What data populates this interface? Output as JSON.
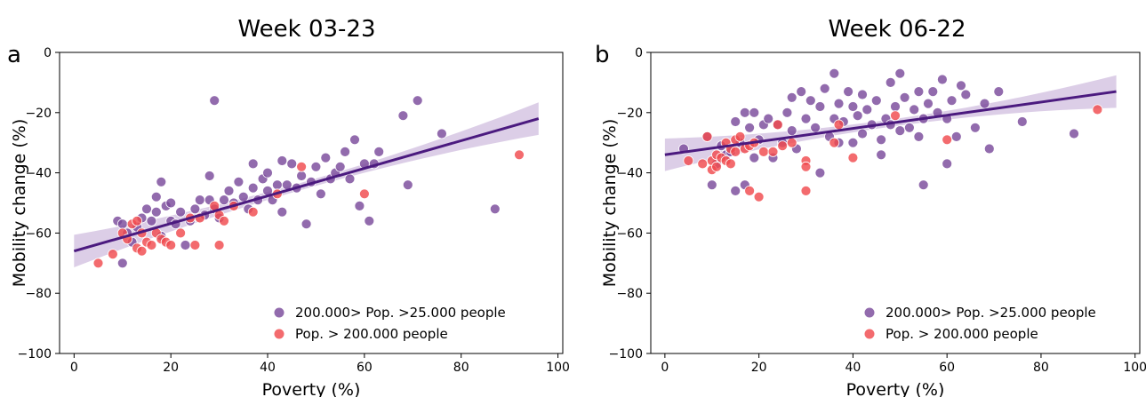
{
  "chart_data": [
    {
      "type": "scatter",
      "panel_letter": "a",
      "title": "Week 03-23",
      "xlabel": "Poverty (%)",
      "ylabel": "Mobility change (%)",
      "xlim": [
        -3,
        101
      ],
      "ylim": [
        -100,
        0
      ],
      "xticks": [
        0,
        20,
        40,
        60,
        80,
        100
      ],
      "yticks": [
        0,
        -20,
        -40,
        -60,
        -80,
        -100
      ],
      "grid": false,
      "legend_position": "lower-right",
      "series": [
        {
          "name": "200.000> Pop. >25.000 people",
          "color": "#7a4a9b",
          "points": [
            [
              9,
              -56
            ],
            [
              10,
              -57
            ],
            [
              10,
              -70
            ],
            [
              11,
              -60
            ],
            [
              12,
              -63
            ],
            [
              13,
              -58
            ],
            [
              14,
              -55
            ],
            [
              15,
              -52
            ],
            [
              16,
              -56
            ],
            [
              17,
              -48
            ],
            [
              17,
              -53
            ],
            [
              18,
              -43
            ],
            [
              18,
              -61
            ],
            [
              19,
              -51
            ],
            [
              20,
              -56
            ],
            [
              20,
              -50
            ],
            [
              21,
              -57
            ],
            [
              22,
              -53
            ],
            [
              23,
              -64
            ],
            [
              24,
              -56
            ],
            [
              25,
              -52
            ],
            [
              26,
              -49
            ],
            [
              27,
              -54
            ],
            [
              28,
              -41
            ],
            [
              28,
              -49
            ],
            [
              29,
              -16
            ],
            [
              29,
              -52
            ],
            [
              30,
              -55
            ],
            [
              31,
              -49
            ],
            [
              32,
              -46
            ],
            [
              33,
              -50
            ],
            [
              34,
              -43
            ],
            [
              35,
              -48
            ],
            [
              36,
              -52
            ],
            [
              37,
              -37
            ],
            [
              37,
              -45
            ],
            [
              38,
              -49
            ],
            [
              39,
              -42
            ],
            [
              40,
              -46
            ],
            [
              40,
              -40
            ],
            [
              41,
              -49
            ],
            [
              42,
              -44
            ],
            [
              43,
              -36
            ],
            [
              43,
              -53
            ],
            [
              44,
              -44
            ],
            [
              45,
              -37
            ],
            [
              46,
              -45
            ],
            [
              47,
              -41
            ],
            [
              48,
              -57
            ],
            [
              49,
              -43
            ],
            [
              50,
              -38
            ],
            [
              51,
              -47
            ],
            [
              52,
              -35
            ],
            [
              53,
              -42
            ],
            [
              54,
              -40
            ],
            [
              55,
              -38
            ],
            [
              56,
              -33
            ],
            [
              57,
              -42
            ],
            [
              58,
              -29
            ],
            [
              59,
              -51
            ],
            [
              60,
              -37
            ],
            [
              61,
              -56
            ],
            [
              62,
              -37
            ],
            [
              63,
              -33
            ],
            [
              68,
              -21
            ],
            [
              69,
              -44
            ],
            [
              71,
              -16
            ],
            [
              76,
              -27
            ],
            [
              87,
              -52
            ]
          ]
        },
        {
          "name": "Pop. > 200.000 people",
          "color": "#f04a4e",
          "points": [
            [
              5,
              -70
            ],
            [
              8,
              -67
            ],
            [
              10,
              -60
            ],
            [
              11,
              -62
            ],
            [
              12,
              -57
            ],
            [
              13,
              -56
            ],
            [
              13,
              -65
            ],
            [
              14,
              -60
            ],
            [
              14,
              -66
            ],
            [
              15,
              -63
            ],
            [
              16,
              -64
            ],
            [
              17,
              -60
            ],
            [
              18,
              -62
            ],
            [
              19,
              -63
            ],
            [
              20,
              -64
            ],
            [
              22,
              -60
            ],
            [
              24,
              -55
            ],
            [
              25,
              -64
            ],
            [
              26,
              -55
            ],
            [
              29,
              -51
            ],
            [
              30,
              -54
            ],
            [
              30,
              -64
            ],
            [
              31,
              -56
            ],
            [
              33,
              -51
            ],
            [
              37,
              -53
            ],
            [
              42,
              -47
            ],
            [
              47,
              -38
            ],
            [
              60,
              -47
            ],
            [
              92,
              -34
            ]
          ]
        }
      ],
      "regression": {
        "color": "#4b1a7f",
        "x": [
          0,
          96
        ],
        "y": [
          -66,
          -22
        ],
        "ci_color": "#c9b3da"
      }
    },
    {
      "type": "scatter",
      "panel_letter": "b",
      "title": "Week 06-22",
      "xlabel": "Poverty (%)",
      "ylabel": "Mobility change (%)",
      "xlim": [
        -3,
        101
      ],
      "ylim": [
        -100,
        0
      ],
      "xticks": [
        0,
        20,
        40,
        60,
        80,
        100
      ],
      "yticks": [
        0,
        -20,
        -40,
        -60,
        -80,
        -100
      ],
      "grid": false,
      "legend_position": "lower-right",
      "series": [
        {
          "name": "200.000> Pop. >25.000 people",
          "color": "#7a4a9b",
          "points": [
            [
              4,
              -32
            ],
            [
              9,
              -28
            ],
            [
              10,
              -44
            ],
            [
              11,
              -37
            ],
            [
              12,
              -31
            ],
            [
              13,
              -34
            ],
            [
              14,
              -33
            ],
            [
              15,
              -46
            ],
            [
              15,
              -23
            ],
            [
              16,
              -30
            ],
            [
              17,
              -20
            ],
            [
              17,
              -44
            ],
            [
              18,
              -25
            ],
            [
              19,
              -35
            ],
            [
              19,
              -20
            ],
            [
              20,
              -29
            ],
            [
              21,
              -24
            ],
            [
              22,
              -22
            ],
            [
              23,
              -35
            ],
            [
              24,
              -24
            ],
            [
              25,
              -30
            ],
            [
              26,
              -20
            ],
            [
              27,
              -15
            ],
            [
              27,
              -26
            ],
            [
              28,
              -32
            ],
            [
              29,
              -13
            ],
            [
              30,
              -22
            ],
            [
              31,
              -16
            ],
            [
              32,
              -25
            ],
            [
              33,
              -18
            ],
            [
              33,
              -40
            ],
            [
              34,
              -12
            ],
            [
              35,
              -28
            ],
            [
              36,
              -7
            ],
            [
              36,
              -22
            ],
            [
              37,
              -17
            ],
            [
              37,
              -30
            ],
            [
              38,
              -23
            ],
            [
              39,
              -13
            ],
            [
              40,
              -18
            ],
            [
              40,
              -30
            ],
            [
              41,
              -21
            ],
            [
              42,
              -14
            ],
            [
              42,
              -27
            ],
            [
              43,
              -19
            ],
            [
              44,
              -24
            ],
            [
              45,
              -16
            ],
            [
              46,
              -29
            ],
            [
              46,
              -34
            ],
            [
              47,
              -22
            ],
            [
              48,
              -10
            ],
            [
              48,
              -24
            ],
            [
              49,
              -18
            ],
            [
              50,
              -7
            ],
            [
              50,
              -26
            ],
            [
              51,
              -15
            ],
            [
              52,
              -25
            ],
            [
              53,
              -19
            ],
            [
              54,
              -13
            ],
            [
              54,
              -28
            ],
            [
              55,
              -44
            ],
            [
              55,
              -22
            ],
            [
              56,
              -17
            ],
            [
              57,
              -13
            ],
            [
              58,
              -20
            ],
            [
              59,
              -9
            ],
            [
              60,
              -22
            ],
            [
              60,
              -37
            ],
            [
              61,
              -16
            ],
            [
              62,
              -28
            ],
            [
              63,
              -11
            ],
            [
              64,
              -14
            ],
            [
              66,
              -25
            ],
            [
              68,
              -17
            ],
            [
              69,
              -32
            ],
            [
              71,
              -13
            ],
            [
              76,
              -23
            ],
            [
              87,
              -27
            ]
          ]
        },
        {
          "name": "Pop. > 200.000 people",
          "color": "#f04a4e",
          "points": [
            [
              5,
              -36
            ],
            [
              8,
              -37
            ],
            [
              9,
              -28
            ],
            [
              10,
              -39
            ],
            [
              10,
              -36
            ],
            [
              11,
              -34
            ],
            [
              11,
              -38
            ],
            [
              12,
              -35
            ],
            [
              13,
              -30
            ],
            [
              13,
              -36
            ],
            [
              14,
              -32
            ],
            [
              14,
              -37
            ],
            [
              15,
              -29
            ],
            [
              15,
              -33
            ],
            [
              16,
              -28
            ],
            [
              17,
              -32
            ],
            [
              18,
              -31
            ],
            [
              18,
              -46
            ],
            [
              19,
              -30
            ],
            [
              20,
              -48
            ],
            [
              21,
              -33
            ],
            [
              23,
              -33
            ],
            [
              24,
              -24
            ],
            [
              25,
              -31
            ],
            [
              27,
              -30
            ],
            [
              30,
              -36
            ],
            [
              30,
              -38
            ],
            [
              30,
              -46
            ],
            [
              36,
              -30
            ],
            [
              37,
              -24
            ],
            [
              40,
              -35
            ],
            [
              49,
              -21
            ],
            [
              60,
              -29
            ],
            [
              92,
              -19
            ]
          ]
        }
      ],
      "regression": {
        "color": "#4b1a7f",
        "x": [
          0,
          96
        ],
        "y": [
          -34,
          -13
        ],
        "ci_color": "#c9b3da"
      }
    }
  ]
}
